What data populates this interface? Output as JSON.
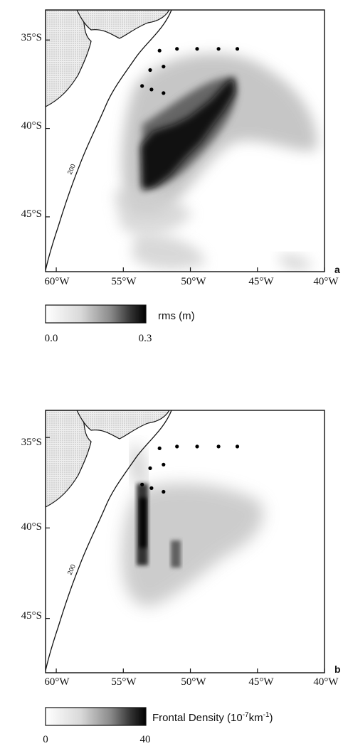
{
  "panels": [
    {
      "id": "a",
      "letter": "a",
      "lat_ticks": [
        "35°S",
        "40°S",
        "45°S"
      ],
      "lon_ticks": [
        "60°W",
        "55°W",
        "50°W",
        "45°W",
        "40°W"
      ],
      "contour_label": "200",
      "colorbar": {
        "label": "rms (m)",
        "label_sup": "",
        "label_end": "",
        "min_label": "0.0",
        "max_label": "0.3"
      },
      "stations": [
        {
          "lon": -52.3,
          "lat": -35.6
        },
        {
          "lon": -51.0,
          "lat": -35.5
        },
        {
          "lon": -49.5,
          "lat": -35.5
        },
        {
          "lon": -47.9,
          "lat": -35.5
        },
        {
          "lon": -46.5,
          "lat": -35.5
        },
        {
          "lon": -53.0,
          "lat": -36.7
        },
        {
          "lon": -52.0,
          "lat": -36.5
        },
        {
          "lon": -53.6,
          "lat": -37.6
        },
        {
          "lon": -52.9,
          "lat": -37.8
        },
        {
          "lon": -52.0,
          "lat": -38.0
        }
      ]
    },
    {
      "id": "b",
      "letter": "b",
      "lat_ticks": [
        "35°S",
        "40°S",
        "45°S"
      ],
      "lon_ticks": [
        "60°W",
        "55°W",
        "50°W",
        "45°W",
        "40°W"
      ],
      "contour_label": "200",
      "colorbar": {
        "label": "Frontal Density (10",
        "label_sup": "-7",
        "label_end": "km",
        "label_sup2": "-1",
        "label_close": ")",
        "min_label": "0",
        "max_label": "40"
      },
      "stations": [
        {
          "lon": -52.3,
          "lat": -35.6
        },
        {
          "lon": -51.0,
          "lat": -35.5
        },
        {
          "lon": -49.5,
          "lat": -35.5
        },
        {
          "lon": -47.9,
          "lat": -35.5
        },
        {
          "lon": -46.5,
          "lat": -35.5
        },
        {
          "lon": -53.0,
          "lat": -36.7
        },
        {
          "lon": -52.0,
          "lat": -36.5
        },
        {
          "lon": -53.6,
          "lat": -37.6
        },
        {
          "lon": -52.9,
          "lat": -37.8
        },
        {
          "lon": -52.0,
          "lat": -38.0
        }
      ]
    }
  ]
}
